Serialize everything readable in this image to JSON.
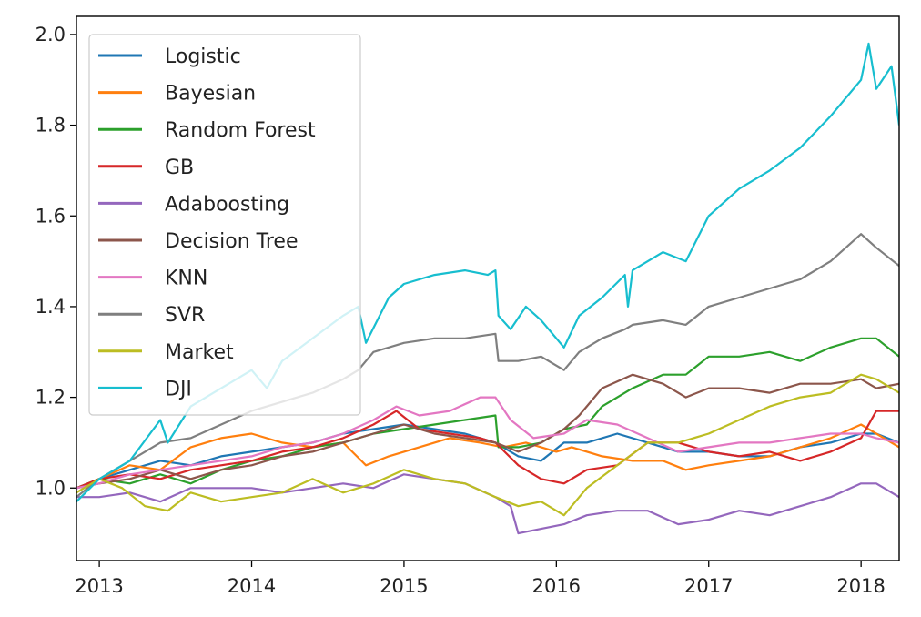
{
  "chart_data": {
    "type": "line",
    "title": "",
    "xlabel": "",
    "ylabel": "",
    "xlim": [
      2012.85,
      2018.25
    ],
    "ylim": [
      0.84,
      2.04
    ],
    "x_ticks": [
      2013,
      2014,
      2015,
      2016,
      2017,
      2018
    ],
    "x_tick_labels": [
      "2013",
      "2014",
      "2015",
      "2016",
      "2017",
      "2018"
    ],
    "y_ticks": [
      1.0,
      1.2,
      1.4,
      1.6,
      1.8,
      2.0
    ],
    "y_tick_labels": [
      "1.0",
      "1.2",
      "1.4",
      "1.6",
      "1.8",
      "2.0"
    ],
    "grid": false,
    "legend_position": "upper-left",
    "series": [
      {
        "name": "Logistic",
        "color": "#1f77b4",
        "x": [
          2012.85,
          2013.0,
          2013.2,
          2013.4,
          2013.6,
          2013.8,
          2014.0,
          2014.2,
          2014.4,
          2014.6,
          2014.8,
          2015.0,
          2015.2,
          2015.4,
          2015.6,
          2015.75,
          2015.9,
          2016.05,
          2016.2,
          2016.4,
          2016.6,
          2016.8,
          2017.0,
          2017.2,
          2017.4,
          2017.6,
          2017.8,
          2018.0,
          2018.1,
          2018.25
        ],
        "y": [
          1.0,
          1.02,
          1.04,
          1.06,
          1.05,
          1.07,
          1.08,
          1.09,
          1.1,
          1.12,
          1.13,
          1.14,
          1.13,
          1.12,
          1.1,
          1.07,
          1.06,
          1.1,
          1.1,
          1.12,
          1.1,
          1.08,
          1.08,
          1.07,
          1.07,
          1.09,
          1.1,
          1.12,
          1.12,
          1.1
        ]
      },
      {
        "name": "Bayesian",
        "color": "#ff7f0e",
        "x": [
          2012.85,
          2013.0,
          2013.2,
          2013.4,
          2013.6,
          2013.8,
          2014.0,
          2014.2,
          2014.4,
          2014.6,
          2014.75,
          2014.9,
          2015.1,
          2015.3,
          2015.5,
          2015.65,
          2015.8,
          2016.0,
          2016.1,
          2016.3,
          2016.5,
          2016.7,
          2016.85,
          2017.0,
          2017.2,
          2017.4,
          2017.6,
          2017.8,
          2018.0,
          2018.1,
          2018.25
        ],
        "y": [
          1.0,
          1.02,
          1.05,
          1.04,
          1.09,
          1.11,
          1.12,
          1.1,
          1.09,
          1.1,
          1.05,
          1.07,
          1.09,
          1.11,
          1.1,
          1.09,
          1.1,
          1.08,
          1.09,
          1.07,
          1.06,
          1.06,
          1.04,
          1.05,
          1.06,
          1.07,
          1.09,
          1.11,
          1.14,
          1.12,
          1.09
        ]
      },
      {
        "name": "Random Forest",
        "color": "#2ca02c",
        "x": [
          2012.85,
          2013.0,
          2013.2,
          2013.4,
          2013.6,
          2013.8,
          2014.0,
          2014.2,
          2014.4,
          2014.6,
          2014.8,
          2015.0,
          2015.2,
          2015.4,
          2015.6,
          2015.62,
          2015.75,
          2015.9,
          2016.05,
          2016.2,
          2016.3,
          2016.5,
          2016.7,
          2016.85,
          2017.0,
          2017.2,
          2017.4,
          2017.6,
          2017.8,
          2018.0,
          2018.1,
          2018.25
        ],
        "y": [
          1.0,
          1.02,
          1.01,
          1.03,
          1.01,
          1.04,
          1.06,
          1.07,
          1.09,
          1.1,
          1.12,
          1.13,
          1.14,
          1.15,
          1.16,
          1.09,
          1.09,
          1.1,
          1.13,
          1.14,
          1.18,
          1.22,
          1.25,
          1.25,
          1.29,
          1.29,
          1.3,
          1.28,
          1.31,
          1.33,
          1.33,
          1.29
        ]
      },
      {
        "name": "GB",
        "color": "#d62728",
        "x": [
          2012.85,
          2013.0,
          2013.2,
          2013.4,
          2013.6,
          2013.8,
          2014.0,
          2014.2,
          2014.4,
          2014.6,
          2014.8,
          2014.95,
          2015.1,
          2015.3,
          2015.5,
          2015.6,
          2015.75,
          2015.9,
          2016.05,
          2016.2,
          2016.4,
          2016.6,
          2016.8,
          2017.0,
          2017.2,
          2017.4,
          2017.6,
          2017.8,
          2018.0,
          2018.1,
          2018.25
        ],
        "y": [
          1.0,
          1.02,
          1.03,
          1.02,
          1.04,
          1.05,
          1.06,
          1.08,
          1.09,
          1.11,
          1.14,
          1.17,
          1.13,
          1.12,
          1.11,
          1.1,
          1.05,
          1.02,
          1.01,
          1.04,
          1.05,
          1.1,
          1.1,
          1.08,
          1.07,
          1.08,
          1.06,
          1.08,
          1.11,
          1.17,
          1.17
        ]
      },
      {
        "name": "Adaboosting",
        "color": "#9467bd",
        "x": [
          2012.85,
          2013.0,
          2013.2,
          2013.4,
          2013.6,
          2013.8,
          2014.0,
          2014.2,
          2014.4,
          2014.6,
          2014.8,
          2015.0,
          2015.2,
          2015.4,
          2015.6,
          2015.7,
          2015.75,
          2015.9,
          2016.05,
          2016.2,
          2016.4,
          2016.6,
          2016.8,
          2017.0,
          2017.2,
          2017.4,
          2017.6,
          2017.8,
          2018.0,
          2018.1,
          2018.25
        ],
        "y": [
          0.98,
          0.98,
          0.99,
          0.97,
          1.0,
          1.0,
          1.0,
          0.99,
          1.0,
          1.01,
          1.0,
          1.03,
          1.02,
          1.01,
          0.98,
          0.96,
          0.9,
          0.91,
          0.92,
          0.94,
          0.95,
          0.95,
          0.92,
          0.93,
          0.95,
          0.94,
          0.96,
          0.98,
          1.01,
          1.01,
          0.98
        ]
      },
      {
        "name": "Decision Tree",
        "color": "#8c564b",
        "x": [
          2012.85,
          2013.0,
          2013.2,
          2013.4,
          2013.6,
          2013.8,
          2014.0,
          2014.2,
          2014.4,
          2014.6,
          2014.8,
          2015.0,
          2015.2,
          2015.4,
          2015.6,
          2015.75,
          2015.9,
          2016.05,
          2016.15,
          2016.3,
          2016.5,
          2016.7,
          2016.85,
          2017.0,
          2017.2,
          2017.4,
          2017.6,
          2017.8,
          2018.0,
          2018.1,
          2018.25
        ],
        "y": [
          1.0,
          1.01,
          1.02,
          1.04,
          1.02,
          1.04,
          1.05,
          1.07,
          1.08,
          1.1,
          1.12,
          1.14,
          1.12,
          1.11,
          1.1,
          1.08,
          1.1,
          1.13,
          1.16,
          1.22,
          1.25,
          1.23,
          1.2,
          1.22,
          1.22,
          1.21,
          1.23,
          1.23,
          1.24,
          1.22,
          1.23
        ]
      },
      {
        "name": "KNN",
        "color": "#e377c2",
        "x": [
          2012.85,
          2013.0,
          2013.2,
          2013.4,
          2013.6,
          2013.8,
          2014.0,
          2014.2,
          2014.4,
          2014.6,
          2014.8,
          2014.95,
          2015.1,
          2015.3,
          2015.5,
          2015.6,
          2015.7,
          2015.85,
          2016.05,
          2016.2,
          2016.4,
          2016.6,
          2016.8,
          2017.0,
          2017.2,
          2017.4,
          2017.6,
          2017.8,
          2018.0,
          2018.1,
          2018.25
        ],
        "y": [
          1.0,
          1.01,
          1.03,
          1.04,
          1.05,
          1.06,
          1.07,
          1.09,
          1.1,
          1.12,
          1.15,
          1.18,
          1.16,
          1.17,
          1.2,
          1.2,
          1.15,
          1.11,
          1.12,
          1.15,
          1.14,
          1.11,
          1.08,
          1.09,
          1.1,
          1.1,
          1.11,
          1.12,
          1.12,
          1.11,
          1.1
        ]
      },
      {
        "name": "SVR",
        "color": "#7f7f7f",
        "x": [
          2012.85,
          2013.0,
          2013.2,
          2013.4,
          2013.6,
          2013.8,
          2014.0,
          2014.2,
          2014.4,
          2014.6,
          2014.7,
          2014.8,
          2015.0,
          2015.2,
          2015.4,
          2015.6,
          2015.62,
          2015.75,
          2015.9,
          2016.05,
          2016.15,
          2016.3,
          2016.45,
          2016.5,
          2016.7,
          2016.85,
          2017.0,
          2017.2,
          2017.4,
          2017.6,
          2017.8,
          2018.0,
          2018.1,
          2018.25
        ],
        "y": [
          0.98,
          1.02,
          1.06,
          1.1,
          1.11,
          1.14,
          1.17,
          1.19,
          1.21,
          1.24,
          1.26,
          1.3,
          1.32,
          1.33,
          1.33,
          1.34,
          1.28,
          1.28,
          1.29,
          1.26,
          1.3,
          1.33,
          1.35,
          1.36,
          1.37,
          1.36,
          1.4,
          1.42,
          1.44,
          1.46,
          1.5,
          1.56,
          1.53,
          1.49
        ]
      },
      {
        "name": "Market",
        "color": "#bcbd22",
        "x": [
          2012.85,
          2013.0,
          2013.15,
          2013.3,
          2013.45,
          2013.6,
          2013.8,
          2014.0,
          2014.2,
          2014.4,
          2014.6,
          2014.8,
          2015.0,
          2015.2,
          2015.4,
          2015.6,
          2015.75,
          2015.9,
          2016.05,
          2016.2,
          2016.4,
          2016.6,
          2016.8,
          2017.0,
          2017.2,
          2017.4,
          2017.6,
          2017.8,
          2018.0,
          2018.1,
          2018.25
        ],
        "y": [
          0.99,
          1.02,
          1.0,
          0.96,
          0.95,
          0.99,
          0.97,
          0.98,
          0.99,
          1.02,
          0.99,
          1.01,
          1.04,
          1.02,
          1.01,
          0.98,
          0.96,
          0.97,
          0.94,
          1.0,
          1.05,
          1.1,
          1.1,
          1.12,
          1.15,
          1.18,
          1.2,
          1.21,
          1.25,
          1.24,
          1.21
        ]
      },
      {
        "name": "DJI",
        "color": "#17becf",
        "x": [
          2012.85,
          2013.0,
          2013.2,
          2013.4,
          2013.45,
          2013.6,
          2013.8,
          2014.0,
          2014.1,
          2014.2,
          2014.4,
          2014.6,
          2014.7,
          2014.75,
          2014.9,
          2015.0,
          2015.2,
          2015.4,
          2015.55,
          2015.6,
          2015.62,
          2015.7,
          2015.8,
          2015.9,
          2016.05,
          2016.15,
          2016.3,
          2016.45,
          2016.47,
          2016.5,
          2016.7,
          2016.85,
          2017.0,
          2017.2,
          2017.4,
          2017.6,
          2017.8,
          2018.0,
          2018.05,
          2018.1,
          2018.2,
          2018.25
        ],
        "y": [
          0.97,
          1.02,
          1.06,
          1.15,
          1.1,
          1.18,
          1.22,
          1.26,
          1.22,
          1.28,
          1.33,
          1.38,
          1.4,
          1.32,
          1.42,
          1.45,
          1.47,
          1.48,
          1.47,
          1.48,
          1.38,
          1.35,
          1.4,
          1.37,
          1.31,
          1.38,
          1.42,
          1.47,
          1.4,
          1.48,
          1.52,
          1.5,
          1.6,
          1.66,
          1.7,
          1.75,
          1.82,
          1.9,
          1.98,
          1.88,
          1.93,
          1.8
        ]
      }
    ]
  }
}
